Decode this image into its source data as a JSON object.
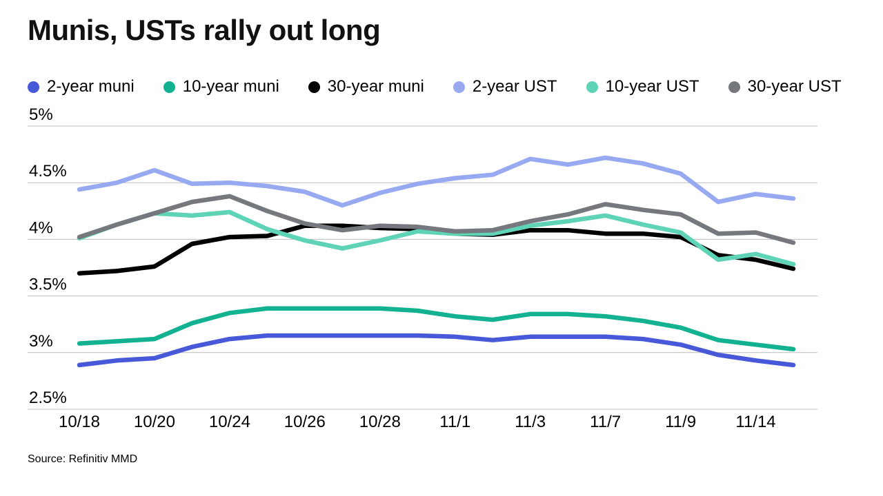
{
  "page": {
    "title": "Munis, USTs rally out long",
    "source": "Source: Refinitiv MMD"
  },
  "chart_data": {
    "type": "line",
    "title": "Munis, USTs rally out long",
    "source": "Source: Refinitiv MMD",
    "grid": "horizontal",
    "legend_position": "top",
    "ylabel": "",
    "xlabel": "",
    "ylim": [
      2.5,
      5.0
    ],
    "y_ticks": [
      {
        "value": 5.0,
        "label": "5%"
      },
      {
        "value": 4.5,
        "label": "4.5%"
      },
      {
        "value": 4.0,
        "label": "4%"
      },
      {
        "value": 3.5,
        "label": "3.5%"
      },
      {
        "value": 3.0,
        "label": "3%"
      },
      {
        "value": 2.5,
        "label": "2.5%"
      }
    ],
    "x": [
      "10/18",
      "10/19",
      "10/20",
      "10/21",
      "10/24",
      "10/25",
      "10/26",
      "10/27",
      "10/28",
      "10/31",
      "11/1",
      "11/2",
      "11/3",
      "11/4",
      "11/7",
      "11/8",
      "11/9",
      "11/10",
      "11/14",
      "11/15"
    ],
    "x_ticks": [
      {
        "index": 0,
        "label": "10/18"
      },
      {
        "index": 2,
        "label": "10/20"
      },
      {
        "index": 4,
        "label": "10/24"
      },
      {
        "index": 6,
        "label": "10/26"
      },
      {
        "index": 8,
        "label": "10/28"
      },
      {
        "index": 10,
        "label": "11/1"
      },
      {
        "index": 12,
        "label": "11/3"
      },
      {
        "index": 14,
        "label": "11/7"
      },
      {
        "index": 16,
        "label": "11/9"
      },
      {
        "index": 18,
        "label": "11/14"
      }
    ],
    "series": [
      {
        "name": "2-year muni",
        "color": "#4758d8",
        "values": [
          2.89,
          2.93,
          2.95,
          3.05,
          3.12,
          3.15,
          3.15,
          3.15,
          3.15,
          3.15,
          3.14,
          3.11,
          3.14,
          3.14,
          3.14,
          3.12,
          3.07,
          2.98,
          2.93,
          2.89
        ]
      },
      {
        "name": "10-year muni",
        "color": "#12b291",
        "values": [
          3.08,
          3.1,
          3.12,
          3.26,
          3.35,
          3.39,
          3.39,
          3.39,
          3.39,
          3.37,
          3.32,
          3.29,
          3.34,
          3.34,
          3.32,
          3.28,
          3.22,
          3.11,
          3.07,
          3.03
        ]
      },
      {
        "name": "30-year muni",
        "color": "#000000",
        "values": [
          3.7,
          3.72,
          3.76,
          3.96,
          4.02,
          4.03,
          4.12,
          4.12,
          4.1,
          4.09,
          4.05,
          4.04,
          4.08,
          4.08,
          4.05,
          4.05,
          4.02,
          3.86,
          3.82,
          3.74
        ]
      },
      {
        "name": "2-year UST",
        "color": "#97a9f1",
        "values": [
          4.44,
          4.5,
          4.61,
          4.49,
          4.5,
          4.47,
          4.42,
          4.3,
          4.41,
          4.49,
          4.54,
          4.57,
          4.71,
          4.66,
          4.72,
          4.67,
          4.58,
          4.33,
          4.4,
          4.36
        ]
      },
      {
        "name": "10-year UST",
        "color": "#5fd3b5",
        "values": [
          4.01,
          4.13,
          4.23,
          4.21,
          4.24,
          4.09,
          3.99,
          3.92,
          3.99,
          4.07,
          4.05,
          4.05,
          4.12,
          4.16,
          4.21,
          4.13,
          4.06,
          3.82,
          3.87,
          3.78
        ]
      },
      {
        "name": "30-year UST",
        "color": "#75787d",
        "values": [
          4.02,
          4.13,
          4.23,
          4.33,
          4.38,
          4.25,
          4.14,
          4.08,
          4.12,
          4.11,
          4.07,
          4.08,
          4.16,
          4.22,
          4.31,
          4.26,
          4.22,
          4.05,
          4.06,
          3.97
        ]
      }
    ],
    "style": {
      "gridline_color": "#bcbcbc",
      "axis_text_color": "#000000",
      "line_width": 6.5
    }
  }
}
